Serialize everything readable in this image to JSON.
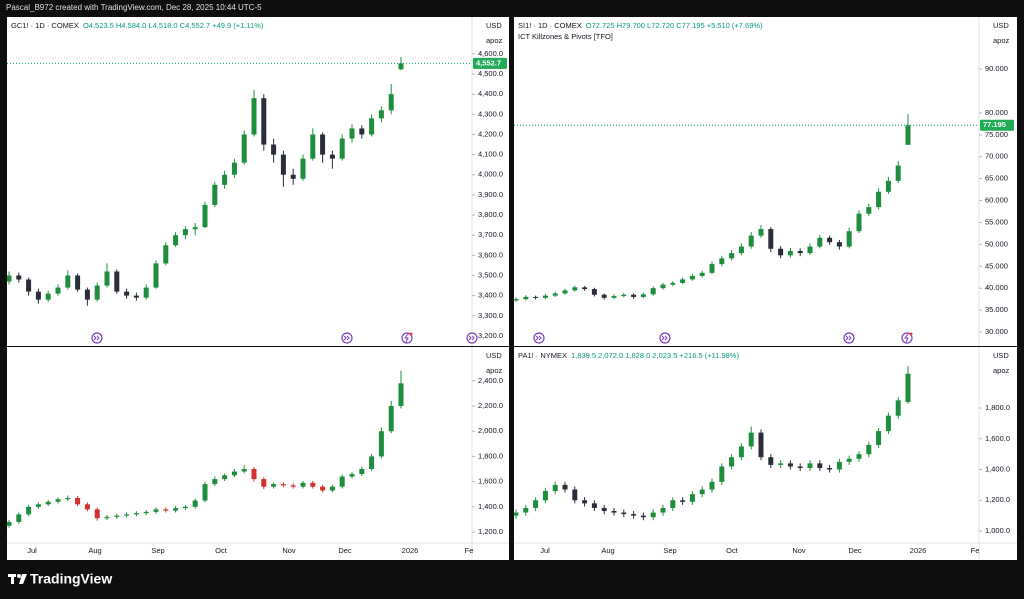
{
  "header": {
    "text": "Pascal_B972 created with TradingView.com, Dec 28, 2025 10:44 UTC-5"
  },
  "footer": {
    "brand": "TradingView"
  },
  "chart_data": [
    {
      "type": "candlestick",
      "symbol": "GC1! · 1D · COMEX",
      "quote": "O4,523.5 H4,584.0 L4,518.0 C4,552.7 +49.9 (+1.11%)",
      "currency": "USD",
      "scale": "apoz",
      "up_color": "#1e8e3e",
      "down_color": "#2a2e39",
      "ylim": [
        3150,
        4783
      ],
      "yticks": [
        {
          "value": 3200,
          "label": "3,200.0"
        },
        {
          "value": 3300,
          "label": "3,300.0"
        },
        {
          "value": 3400,
          "label": "3,400.0"
        },
        {
          "value": 3500,
          "label": "3,500.0"
        },
        {
          "value": 3600,
          "label": "3,600.0"
        },
        {
          "value": 3700,
          "label": "3,700.0"
        },
        {
          "value": 3800,
          "label": "3,800.0"
        },
        {
          "value": 3900,
          "label": "3,900.0"
        },
        {
          "value": 4000,
          "label": "4,000.0"
        },
        {
          "value": 4100,
          "label": "4,100.0"
        },
        {
          "value": 4200,
          "label": "4,200.0"
        },
        {
          "value": 4300,
          "label": "4,300.0"
        },
        {
          "value": 4400,
          "label": "4,400.0"
        },
        {
          "value": 4500,
          "label": "4,500.0"
        },
        {
          "value": 4600,
          "label": "4,600.0"
        }
      ],
      "last": {
        "value": 4552.7,
        "label": "4,552.7"
      },
      "ohlc": [
        [
          3470,
          3520,
          3455,
          3500
        ],
        [
          3500,
          3515,
          3465,
          3480
        ],
        [
          3480,
          3490,
          3400,
          3420
        ],
        [
          3420,
          3435,
          3360,
          3380
        ],
        [
          3380,
          3425,
          3370,
          3410
        ],
        [
          3410,
          3455,
          3400,
          3440
        ],
        [
          3440,
          3525,
          3430,
          3500
        ],
        [
          3500,
          3510,
          3420,
          3430
        ],
        [
          3430,
          3440,
          3350,
          3380
        ],
        [
          3380,
          3465,
          3370,
          3450
        ],
        [
          3450,
          3560,
          3440,
          3520
        ],
        [
          3520,
          3530,
          3410,
          3420
        ],
        [
          3420,
          3435,
          3385,
          3400
        ],
        [
          3400,
          3415,
          3375,
          3390
        ],
        [
          3390,
          3455,
          3380,
          3440
        ],
        [
          3440,
          3575,
          3435,
          3560
        ],
        [
          3560,
          3665,
          3550,
          3650
        ],
        [
          3650,
          3715,
          3640,
          3700
        ],
        [
          3700,
          3745,
          3680,
          3730
        ],
        [
          3730,
          3760,
          3700,
          3740
        ],
        [
          3740,
          3865,
          3735,
          3850
        ],
        [
          3850,
          3965,
          3840,
          3950
        ],
        [
          3950,
          4020,
          3930,
          4000
        ],
        [
          4000,
          4080,
          3985,
          4060
        ],
        [
          4060,
          4220,
          4050,
          4200
        ],
        [
          4200,
          4420,
          4190,
          4380
        ],
        [
          4380,
          4400,
          4120,
          4150
        ],
        [
          4150,
          4180,
          4060,
          4100
        ],
        [
          4100,
          4120,
          3940,
          4000
        ],
        [
          4000,
          4030,
          3950,
          3980
        ],
        [
          3980,
          4100,
          3970,
          4080
        ],
        [
          4080,
          4230,
          4070,
          4200
        ],
        [
          4200,
          4210,
          4060,
          4100
        ],
        [
          4100,
          4120,
          4030,
          4080
        ],
        [
          4080,
          4200,
          4070,
          4180
        ],
        [
          4180,
          4250,
          4160,
          4230
        ],
        [
          4230,
          4245,
          4180,
          4200
        ],
        [
          4200,
          4300,
          4190,
          4280
        ],
        [
          4280,
          4340,
          4260,
          4320
        ],
        [
          4320,
          4450,
          4300,
          4400
        ],
        [
          4523.5,
          4584.0,
          4518.0,
          4552.7
        ]
      ]
    },
    {
      "type": "candlestick",
      "symbol": "SI1! · 1D · COMEX",
      "quote": "O72.725 H79.700 L72.720 C77.195 +5.510 (+7.69%)",
      "indicator": "ICT Killzones & Pivots [TFO]",
      "currency": "USD",
      "scale": "apoz",
      "up_color": "#1e8e3e",
      "down_color": "#2a2e39",
      "ylim": [
        26.8,
        101.9
      ],
      "yticks": [
        {
          "value": 30,
          "label": "30.000"
        },
        {
          "value": 35,
          "label": "35.000"
        },
        {
          "value": 40,
          "label": "40.000"
        },
        {
          "value": 45,
          "label": "45.000"
        },
        {
          "value": 50,
          "label": "50.000"
        },
        {
          "value": 55,
          "label": "55.000"
        },
        {
          "value": 60,
          "label": "60.000"
        },
        {
          "value": 65,
          "label": "65.000"
        },
        {
          "value": 70,
          "label": "70.000"
        },
        {
          "value": 75,
          "label": "75.000"
        },
        {
          "value": 80,
          "label": "80.000"
        },
        {
          "value": 90,
          "label": "90.000"
        }
      ],
      "last": {
        "value": 77.195,
        "label": "77.195"
      },
      "ohlc": [
        [
          37.2,
          37.9,
          36.9,
          37.5
        ],
        [
          37.5,
          38.4,
          37.2,
          38.0
        ],
        [
          38.0,
          38.3,
          37.4,
          37.8
        ],
        [
          37.8,
          38.7,
          37.5,
          38.3
        ],
        [
          38.3,
          39.2,
          38.0,
          38.8
        ],
        [
          38.8,
          39.9,
          38.5,
          39.5
        ],
        [
          39.5,
          40.6,
          39.2,
          40.2
        ],
        [
          40.2,
          40.5,
          39.4,
          39.8
        ],
        [
          39.8,
          40.1,
          38.1,
          38.5
        ],
        [
          38.5,
          38.8,
          37.4,
          37.8
        ],
        [
          37.8,
          38.6,
          37.5,
          38.2
        ],
        [
          38.2,
          38.9,
          37.9,
          38.5
        ],
        [
          38.5,
          38.8,
          37.6,
          38.0
        ],
        [
          38.0,
          39.0,
          37.7,
          38.6
        ],
        [
          38.6,
          40.4,
          38.3,
          40.0
        ],
        [
          40.0,
          41.2,
          39.7,
          40.8
        ],
        [
          40.8,
          41.6,
          40.5,
          41.2
        ],
        [
          41.2,
          42.4,
          40.9,
          42.0
        ],
        [
          42.0,
          43.3,
          41.7,
          42.8
        ],
        [
          42.8,
          44.0,
          42.4,
          43.5
        ],
        [
          43.5,
          46.1,
          43.2,
          45.5
        ],
        [
          45.5,
          47.4,
          45.0,
          46.8
        ],
        [
          46.8,
          48.7,
          46.3,
          48.0
        ],
        [
          48.0,
          50.2,
          47.5,
          49.5
        ],
        [
          49.5,
          52.8,
          49.0,
          52.0
        ],
        [
          52.0,
          54.4,
          51.5,
          53.5
        ],
        [
          53.5,
          54.0,
          48.2,
          49.0
        ],
        [
          49.0,
          49.6,
          46.8,
          47.5
        ],
        [
          47.5,
          49.2,
          47.0,
          48.5
        ],
        [
          48.5,
          49.1,
          47.3,
          48.0
        ],
        [
          48.0,
          50.2,
          47.6,
          49.5
        ],
        [
          49.5,
          52.2,
          49.1,
          51.5
        ],
        [
          51.5,
          52.0,
          49.9,
          50.5
        ],
        [
          50.5,
          51.0,
          48.8,
          49.5
        ],
        [
          49.5,
          53.8,
          49.1,
          53.0
        ],
        [
          53.0,
          57.8,
          52.6,
          57.0
        ],
        [
          57.0,
          59.3,
          56.5,
          58.5
        ],
        [
          58.5,
          62.8,
          58.0,
          62.0
        ],
        [
          62.0,
          65.4,
          61.5,
          64.5
        ],
        [
          64.5,
          69.0,
          64.0,
          68.0
        ],
        [
          72.725,
          79.7,
          72.72,
          77.195
        ]
      ]
    },
    {
      "type": "candlestick",
      "currency": "USD",
      "scale": "apoz",
      "up_color": "#1e8e3e",
      "down_color": "#d32f2f",
      "ylim": [
        1113,
        2668
      ],
      "yticks": [
        {
          "value": 1200,
          "label": "1,200.0"
        },
        {
          "value": 1400,
          "label": "1,400.0"
        },
        {
          "value": 1600,
          "label": "1,600.0"
        },
        {
          "value": 1800,
          "label": "1,800.0"
        },
        {
          "value": 2000,
          "label": "2,000.0"
        },
        {
          "value": 2200,
          "label": "2,200.0"
        },
        {
          "value": 2400,
          "label": "2,400.0"
        }
      ],
      "x_labels": [
        "Jul",
        "Aug",
        "Sep",
        "Oct",
        "Nov",
        "Dec",
        "2026",
        "Fe"
      ],
      "ohlc": [
        [
          1250,
          1295,
          1235,
          1280
        ],
        [
          1280,
          1355,
          1265,
          1340
        ],
        [
          1340,
          1415,
          1325,
          1400
        ],
        [
          1400,
          1435,
          1385,
          1420
        ],
        [
          1420,
          1455,
          1405,
          1440
        ],
        [
          1440,
          1475,
          1425,
          1460
        ],
        [
          1460,
          1490,
          1445,
          1470
        ],
        [
          1470,
          1485,
          1405,
          1420
        ],
        [
          1420,
          1435,
          1365,
          1380
        ],
        [
          1380,
          1395,
          1290,
          1310
        ],
        [
          1310,
          1335,
          1295,
          1320
        ],
        [
          1320,
          1345,
          1305,
          1330
        ],
        [
          1330,
          1355,
          1315,
          1340
        ],
        [
          1340,
          1365,
          1325,
          1350
        ],
        [
          1350,
          1375,
          1335,
          1360
        ],
        [
          1360,
          1395,
          1345,
          1380
        ],
        [
          1380,
          1395,
          1355,
          1370
        ],
        [
          1370,
          1405,
          1355,
          1390
        ],
        [
          1390,
          1415,
          1375,
          1400
        ],
        [
          1400,
          1465,
          1385,
          1450
        ],
        [
          1450,
          1600,
          1435,
          1580
        ],
        [
          1580,
          1640,
          1565,
          1620
        ],
        [
          1620,
          1665,
          1605,
          1650
        ],
        [
          1650,
          1700,
          1635,
          1680
        ],
        [
          1680,
          1730,
          1665,
          1700
        ],
        [
          1700,
          1715,
          1600,
          1620
        ],
        [
          1620,
          1635,
          1540,
          1560
        ],
        [
          1560,
          1595,
          1545,
          1580
        ],
        [
          1580,
          1595,
          1555,
          1570
        ],
        [
          1570,
          1585,
          1545,
          1560
        ],
        [
          1560,
          1605,
          1545,
          1590
        ],
        [
          1590,
          1605,
          1545,
          1560
        ],
        [
          1560,
          1575,
          1515,
          1530
        ],
        [
          1530,
          1575,
          1515,
          1560
        ],
        [
          1560,
          1655,
          1545,
          1640
        ],
        [
          1640,
          1675,
          1625,
          1660
        ],
        [
          1660,
          1720,
          1645,
          1700
        ],
        [
          1700,
          1820,
          1685,
          1800
        ],
        [
          1800,
          2030,
          1785,
          2000
        ],
        [
          2000,
          2240,
          1985,
          2200
        ],
        [
          2200,
          2480,
          2180,
          2380
        ]
      ]
    },
    {
      "type": "candlestick",
      "symbol": "PA1! · NYMEX",
      "quote": "1,839.5 2,072.0 1,828.0 2,023.5 +216.5 (+11.98%)",
      "currency": "USD",
      "scale": "apoz",
      "up_color": "#1e8e3e",
      "down_color": "#2a2e39",
      "ylim": [
        922,
        2197
      ],
      "yticks": [
        {
          "value": 1000,
          "label": "1,000.0"
        },
        {
          "value": 1200,
          "label": "1,200.0"
        },
        {
          "value": 1400,
          "label": "1,400.0"
        },
        {
          "value": 1600,
          "label": "1,600.0"
        },
        {
          "value": 1800,
          "label": "1,800.0"
        }
      ],
      "x_labels": [
        "Jul",
        "Aug",
        "Sep",
        "Oct",
        "Nov",
        "Dec",
        "2026",
        "Fe"
      ],
      "ohlc": [
        [
          1100,
          1140,
          1080,
          1120
        ],
        [
          1120,
          1170,
          1100,
          1150
        ],
        [
          1150,
          1220,
          1130,
          1200
        ],
        [
          1200,
          1280,
          1180,
          1260
        ],
        [
          1260,
          1320,
          1240,
          1300
        ],
        [
          1300,
          1320,
          1250,
          1270
        ],
        [
          1270,
          1290,
          1180,
          1200
        ],
        [
          1200,
          1220,
          1160,
          1180
        ],
        [
          1180,
          1200,
          1130,
          1150
        ],
        [
          1150,
          1170,
          1110,
          1130
        ],
        [
          1130,
          1150,
          1100,
          1120
        ],
        [
          1120,
          1140,
          1090,
          1110
        ],
        [
          1110,
          1130,
          1080,
          1100
        ],
        [
          1100,
          1120,
          1070,
          1090
        ],
        [
          1090,
          1140,
          1070,
          1120
        ],
        [
          1120,
          1170,
          1100,
          1150
        ],
        [
          1150,
          1220,
          1130,
          1200
        ],
        [
          1200,
          1220,
          1170,
          1190
        ],
        [
          1190,
          1260,
          1170,
          1240
        ],
        [
          1240,
          1290,
          1220,
          1270
        ],
        [
          1270,
          1340,
          1250,
          1320
        ],
        [
          1320,
          1440,
          1300,
          1420
        ],
        [
          1420,
          1500,
          1400,
          1480
        ],
        [
          1480,
          1570,
          1460,
          1550
        ],
        [
          1550,
          1680,
          1530,
          1640
        ],
        [
          1640,
          1660,
          1460,
          1480
        ],
        [
          1480,
          1500,
          1410,
          1430
        ],
        [
          1430,
          1460,
          1410,
          1440
        ],
        [
          1440,
          1460,
          1400,
          1420
        ],
        [
          1420,
          1440,
          1390,
          1410
        ],
        [
          1410,
          1460,
          1390,
          1440
        ],
        [
          1440,
          1460,
          1390,
          1410
        ],
        [
          1410,
          1430,
          1380,
          1400
        ],
        [
          1400,
          1470,
          1380,
          1450
        ],
        [
          1450,
          1490,
          1430,
          1470
        ],
        [
          1470,
          1520,
          1450,
          1500
        ],
        [
          1500,
          1580,
          1480,
          1560
        ],
        [
          1560,
          1670,
          1540,
          1650
        ],
        [
          1650,
          1770,
          1630,
          1750
        ],
        [
          1750,
          1870,
          1730,
          1850
        ],
        [
          1839.5,
          2072.0,
          1828.0,
          2023.5
        ]
      ]
    }
  ]
}
